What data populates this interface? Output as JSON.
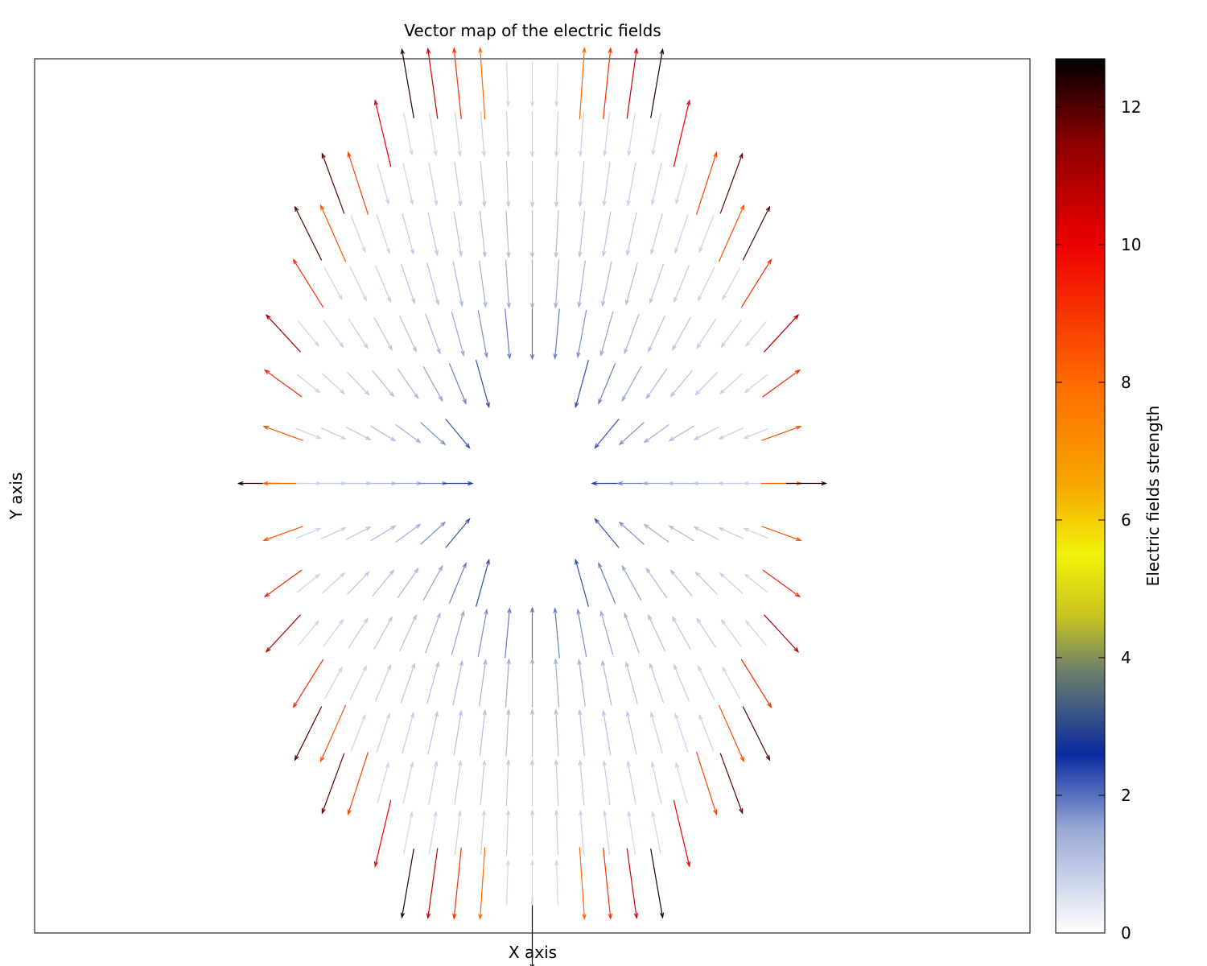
{
  "chart_data": {
    "type": "vector_field",
    "title": "Vector map of the electric fields",
    "xlabel": "X axis",
    "ylabel": "Y axis",
    "colorbar": {
      "label": "Electric fields strength",
      "range": [
        0,
        12.7
      ],
      "ticks": [
        "0",
        "2",
        "4",
        "6",
        "8",
        "10",
        "12"
      ],
      "tick_values": [
        0,
        2,
        4,
        6,
        8,
        10,
        12
      ],
      "colors": [
        {
          "v": 0,
          "c": "#ffffff"
        },
        {
          "v": 1.5,
          "c": "#9aaad6"
        },
        {
          "v": 2.6,
          "c": "#0a2aa0"
        },
        {
          "v": 3.8,
          "c": "#6b7f6a"
        },
        {
          "v": 4.6,
          "c": "#c8c420"
        },
        {
          "v": 5.5,
          "c": "#f2f20a"
        },
        {
          "v": 6.5,
          "c": "#f6a800"
        },
        {
          "v": 8.0,
          "c": "#ff6a00"
        },
        {
          "v": 10.0,
          "c": "#ee0000"
        },
        {
          "v": 11.5,
          "c": "#8a0000"
        },
        {
          "v": 12.7,
          "c": "#000000"
        }
      ]
    },
    "xlim": [
      -10,
      10
    ],
    "ylim": [
      -8.5,
      9
    ],
    "grid": false,
    "field": {
      "source_center": [
        0,
        0.5
      ],
      "inner_radius_x": 1.4,
      "inner_radius_y": 2.3,
      "outer_radius_x": 5.5,
      "outer_radius_y": 9,
      "x_step": 0.5,
      "y_step": 1.0,
      "x_start": -5.5,
      "x_end": 5.5,
      "y_start": -8.5,
      "y_end": 8.5
    }
  }
}
